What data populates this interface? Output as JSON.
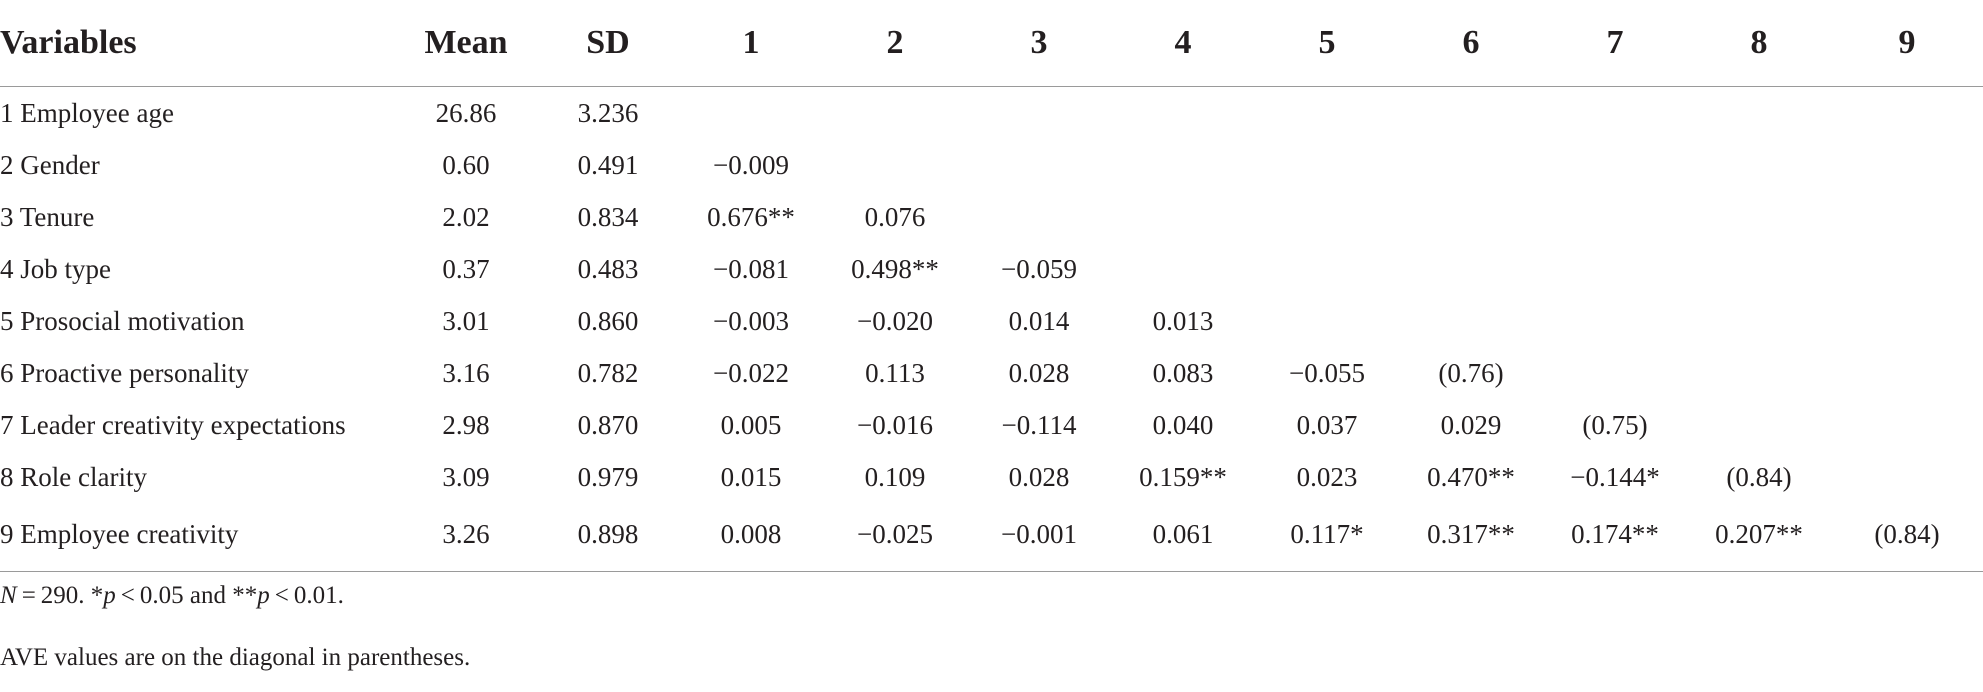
{
  "table": {
    "headers": [
      "Variables",
      "Mean",
      "SD",
      "1",
      "2",
      "3",
      "4",
      "5",
      "6",
      "7",
      "8",
      "9"
    ],
    "rows": [
      {
        "variable": "1 Employee age",
        "mean": "26.86",
        "sd": "3.236",
        "cells": [
          "",
          "",
          "",
          "",
          "",
          "",
          "",
          "",
          ""
        ]
      },
      {
        "variable": "2 Gender",
        "mean": "0.60",
        "sd": "0.491",
        "cells": [
          "−0.009",
          "",
          "",
          "",
          "",
          "",
          "",
          "",
          ""
        ]
      },
      {
        "variable": "3 Tenure",
        "mean": "2.02",
        "sd": "0.834",
        "cells": [
          "0.676**",
          "0.076",
          "",
          "",
          "",
          "",
          "",
          "",
          ""
        ]
      },
      {
        "variable": "4 Job type",
        "mean": "0.37",
        "sd": "0.483",
        "cells": [
          "−0.081",
          "0.498**",
          "−0.059",
          "",
          "",
          "",
          "",
          "",
          ""
        ]
      },
      {
        "variable": "5 Prosocial motivation",
        "mean": "3.01",
        "sd": "0.860",
        "cells": [
          "−0.003",
          "−0.020",
          "0.014",
          "0.013",
          "",
          "",
          "",
          "",
          ""
        ]
      },
      {
        "variable": "6 Proactive personality",
        "mean": "3.16",
        "sd": "0.782",
        "cells": [
          "−0.022",
          "0.113",
          "0.028",
          "0.083",
          "−0.055",
          "(0.76)",
          "",
          "",
          ""
        ]
      },
      {
        "variable": "7 Leader creativity expectations",
        "mean": "2.98",
        "sd": "0.870",
        "cells": [
          "0.005",
          "−0.016",
          "−0.114",
          "0.040",
          "0.037",
          "0.029",
          "(0.75)",
          "",
          ""
        ]
      },
      {
        "variable": "8 Role clarity",
        "mean": "3.09",
        "sd": "0.979",
        "cells": [
          "0.015",
          "0.109",
          "0.028",
          "0.159**",
          "0.023",
          "0.470**",
          "−0.144*",
          "(0.84)",
          ""
        ]
      },
      {
        "variable": "9 Employee creativity",
        "mean": "3.26",
        "sd": "0.898",
        "cells": [
          "0.008",
          "−0.025",
          "−0.001",
          "0.061",
          "0.117*",
          "0.317**",
          "0.174**",
          "0.207**",
          "(0.84)"
        ]
      }
    ]
  },
  "notes": {
    "n_label": "N",
    "n_value": " = 290. *",
    "p1_label": "p",
    "p1_value": " < 0.05 and **",
    "p2_label": "p",
    "p2_value": " < 0.01.",
    "ave": "AVE values are on the diagonal in parentheses."
  }
}
